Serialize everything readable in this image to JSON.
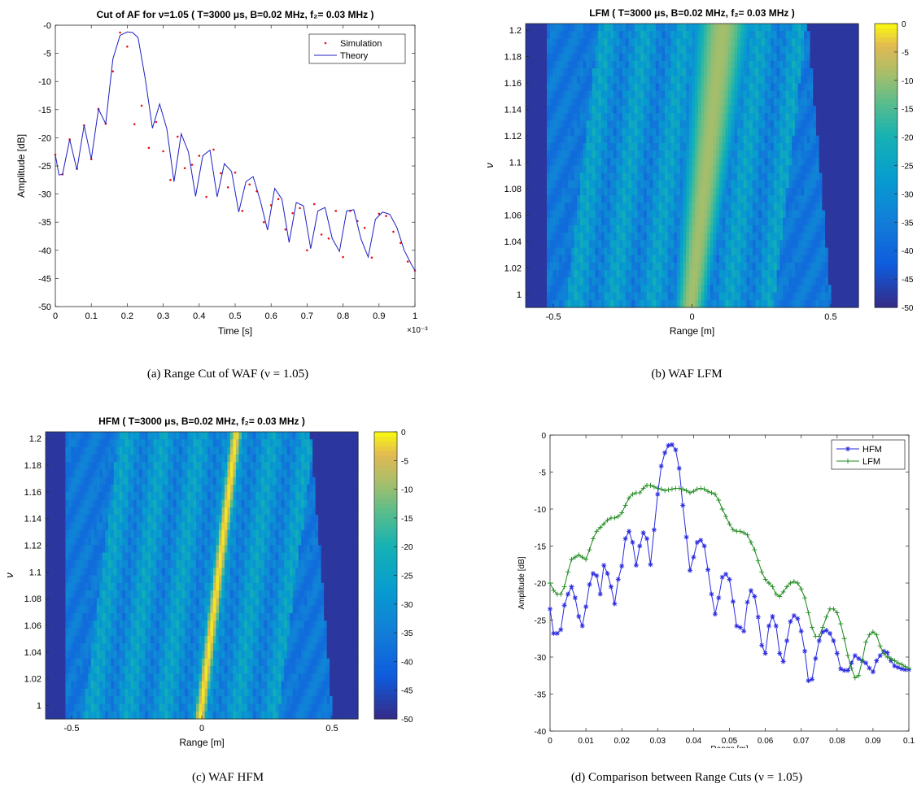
{
  "captions": {
    "a": "(a) Range Cut of WAF (ν = 1.05)",
    "b": "(b) WAF LFM",
    "c": "(c) WAF HFM",
    "d": "(d) Comparison between Range Cuts (ν = 1.05)"
  },
  "chart_data": [
    {
      "id": "a",
      "type": "line",
      "title": "Cut of AF for ν=1.05 ( T=3000 μs, B=0.02 MHz, f₂= 0.03 MHz )",
      "xlabel": "Time [s]",
      "ylabel": "Amplitude [dB]",
      "x_multiplier": "×10⁻³",
      "xlim": [
        0,
        1
      ],
      "ylim": [
        -50,
        0
      ],
      "xticks": [
        "0",
        "0.1",
        "0.2",
        "0.3",
        "0.4",
        "0.5",
        "0.6",
        "0.7",
        "0.8",
        "0.9",
        "1"
      ],
      "yticks": [
        "-0",
        "-5",
        "-10",
        "-15",
        "-20",
        "-25",
        "-30",
        "-35",
        "-40",
        "-45",
        "-50"
      ],
      "grid": false,
      "legend": "top-right",
      "series": [
        {
          "name": "Simulation",
          "style": "dots",
          "color": "#e8141c",
          "x": [
            0,
            0.02,
            0.04,
            0.06,
            0.08,
            0.1,
            0.12,
            0.14,
            0.16,
            0.18,
            0.2,
            0.22,
            0.24,
            0.26,
            0.28,
            0.3,
            0.32,
            0.34,
            0.36,
            0.38,
            0.4,
            0.42,
            0.44,
            0.46,
            0.48,
            0.5,
            0.52,
            0.54,
            0.56,
            0.58,
            0.6,
            0.62,
            0.64,
            0.66,
            0.68,
            0.7,
            0.72,
            0.74,
            0.76,
            0.78,
            0.8,
            0.82,
            0.84,
            0.86,
            0.88,
            0.9,
            0.92,
            0.94,
            0.96,
            0.98,
            1.0
          ],
          "y": [
            -23,
            -26.5,
            -20.3,
            -25.5,
            -17.8,
            -23.8,
            -14.9,
            -17.5,
            -8.2,
            -1.3,
            -3.8,
            -17.6,
            -14.3,
            -21.8,
            -17.2,
            -22.4,
            -27.5,
            -19.8,
            -25.4,
            -24.8,
            -23.2,
            -30.5,
            -22.1,
            -26.3,
            -28.8,
            -26.2,
            -33.0,
            -28.3,
            -29.5,
            -35.0,
            -32.0,
            -30.9,
            -36.3,
            -33.4,
            -32.5,
            -40.0,
            -31.8,
            -37.2,
            -37.9,
            -33.0,
            -41.2,
            -33.0,
            -34.8,
            -36.0,
            -41.3,
            -33.5,
            -33.9,
            -36.7,
            -38.7,
            -42.0,
            -43.6
          ]
        },
        {
          "name": "Theory",
          "style": "line",
          "color": "#1f1fc4",
          "x": [
            0,
            0.01,
            0.02,
            0.04,
            0.06,
            0.08,
            0.1,
            0.12,
            0.14,
            0.16,
            0.18,
            0.2,
            0.215,
            0.23,
            0.25,
            0.27,
            0.29,
            0.31,
            0.33,
            0.35,
            0.37,
            0.39,
            0.41,
            0.43,
            0.45,
            0.47,
            0.49,
            0.51,
            0.53,
            0.55,
            0.57,
            0.59,
            0.61,
            0.63,
            0.65,
            0.67,
            0.69,
            0.71,
            0.73,
            0.75,
            0.77,
            0.79,
            0.81,
            0.83,
            0.85,
            0.87,
            0.89,
            0.91,
            0.93,
            0.95,
            0.97,
            0.99,
            1.0
          ],
          "y": [
            -23,
            -26.6,
            -26.5,
            -20.3,
            -25.7,
            -17.8,
            -23.8,
            -14.9,
            -17.5,
            -6,
            -1.8,
            -1.2,
            -1.3,
            -2.2,
            -9.5,
            -18.3,
            -14.0,
            -18.4,
            -27.8,
            -19.3,
            -22.5,
            -30.4,
            -23.2,
            -22.2,
            -30.5,
            -24.6,
            -26.0,
            -33.2,
            -27.8,
            -26.9,
            -31.2,
            -36.4,
            -29.0,
            -30.9,
            -38.6,
            -31.5,
            -32.1,
            -39.7,
            -33.0,
            -32.4,
            -37.9,
            -40.2,
            -33.0,
            -32.8,
            -38.0,
            -41.2,
            -34.5,
            -33.2,
            -33.6,
            -36.0,
            -40.0,
            -42.5,
            -43.6
          ]
        }
      ]
    },
    {
      "id": "b",
      "type": "heatmap",
      "title": "LFM ( T=3000 μs, B=0.02 MHz, f₂= 0.03 MHz )",
      "xlabel": "Range [m]",
      "ylabel": "ν",
      "xlim": [
        -0.6,
        0.6
      ],
      "ylim": [
        0.99,
        1.205
      ],
      "xticks": [
        "-0.5",
        "0",
        "0.5"
      ],
      "yticks": [
        "1",
        "1.02",
        "1.04",
        "1.06",
        "1.08",
        "1.1",
        "1.12",
        "1.14",
        "1.16",
        "1.18",
        "1.2"
      ],
      "colorbar": {
        "ticks": [
          "0",
          "-5",
          "-10",
          "-15",
          "-20",
          "-25",
          "-30",
          "-35",
          "-40",
          "-45",
          "-50"
        ],
        "range": [
          -50,
          0
        ]
      },
      "ridge": {
        "start": [
          0,
          1.0
        ],
        "end": [
          0.11,
          1.2
        ],
        "peak_db": -9,
        "edge_db": -5
      },
      "bands": {
        "start": [
          -0.52,
          0.5
        ],
        "end": [
          -0.58,
          0.42
        ]
      }
    },
    {
      "id": "c",
      "type": "heatmap",
      "title": "HFM ( T=3000 μs, B=0.02 MHz, f₂= 0.03 MHz )",
      "xlabel": "Range [m]",
      "ylabel": "ν",
      "xlim": [
        -0.6,
        0.6
      ],
      "ylim": [
        0.99,
        1.205
      ],
      "xticks": [
        "-0.5",
        "0",
        "0.5"
      ],
      "yticks": [
        "1",
        "1.02",
        "1.04",
        "1.06",
        "1.08",
        "1.1",
        "1.12",
        "1.14",
        "1.16",
        "1.18",
        "1.2"
      ],
      "colorbar": {
        "ticks": [
          "0",
          "-5",
          "-10",
          "-15",
          "-20",
          "-25",
          "-30",
          "-35",
          "-40",
          "-45",
          "-50"
        ],
        "range": [
          -50,
          0
        ]
      },
      "ridge": {
        "start": [
          0,
          1.0
        ],
        "end": [
          0.13,
          1.2
        ],
        "peak_db": -1,
        "edge_db": -3
      },
      "bands": {
        "start": [
          -0.52,
          0.5
        ],
        "end": [
          -0.58,
          0.42
        ]
      }
    },
    {
      "id": "d",
      "type": "line",
      "title": "",
      "xlabel": "Range [m]",
      "ylabel": "Amplitude [dB]",
      "xlim": [
        0,
        0.1
      ],
      "ylim": [
        -40,
        0
      ],
      "xticks": [
        "0",
        "0.01",
        "0.02",
        "0.03",
        "0.04",
        "0.05",
        "0.06",
        "0.07",
        "0.08",
        "0.09",
        "0.1"
      ],
      "yticks": [
        "0",
        "-5",
        "-10",
        "-15",
        "-20",
        "-25",
        "-30",
        "-35",
        "-40"
      ],
      "grid": false,
      "legend": "top-right",
      "series": [
        {
          "name": "HFM",
          "marker": "*",
          "color": "#2a2ae0",
          "x": [
            0,
            0.001,
            0.002,
            0.003,
            0.004,
            0.005,
            0.006,
            0.007,
            0.008,
            0.009,
            0.01,
            0.011,
            0.012,
            0.013,
            0.014,
            0.015,
            0.016,
            0.017,
            0.018,
            0.019,
            0.02,
            0.021,
            0.022,
            0.023,
            0.024,
            0.025,
            0.026,
            0.027,
            0.028,
            0.029,
            0.03,
            0.031,
            0.032,
            0.033,
            0.034,
            0.035,
            0.036,
            0.037,
            0.038,
            0.039,
            0.04,
            0.041,
            0.042,
            0.043,
            0.044,
            0.045,
            0.046,
            0.047,
            0.048,
            0.049,
            0.05,
            0.051,
            0.052,
            0.053,
            0.054,
            0.055,
            0.056,
            0.057,
            0.058,
            0.059,
            0.06,
            0.061,
            0.062,
            0.063,
            0.064,
            0.065,
            0.066,
            0.067,
            0.068,
            0.069,
            0.07,
            0.071,
            0.072,
            0.073,
            0.074,
            0.075,
            0.076,
            0.077,
            0.078,
            0.079,
            0.08,
            0.081,
            0.082,
            0.083,
            0.084,
            0.085,
            0.086,
            0.087,
            0.088,
            0.089,
            0.09,
            0.091,
            0.092,
            0.093,
            0.094,
            0.095,
            0.096,
            0.097,
            0.098,
            0.099,
            0.1
          ],
          "y": [
            -23.5,
            -26.8,
            -26.8,
            -26.3,
            -23,
            -21.5,
            -20.5,
            -22,
            -24.5,
            -25.8,
            -23.2,
            -20.2,
            -18.7,
            -19,
            -21.5,
            -17.6,
            -18.7,
            -20.5,
            -22.8,
            -19.5,
            -17.7,
            -14,
            -13,
            -14.5,
            -17.6,
            -15,
            -13.2,
            -14,
            -17.5,
            -12.8,
            -8,
            -4.2,
            -2.4,
            -1.4,
            -1.3,
            -2,
            -4.5,
            -9.5,
            -13.8,
            -18.3,
            -16.5,
            -14.5,
            -14.2,
            -15,
            -18.2,
            -21.5,
            -24.2,
            -22,
            -19.2,
            -18.8,
            -19.5,
            -22.5,
            -25.8,
            -26,
            -26.5,
            -22.6,
            -21,
            -21.8,
            -24.6,
            -28.4,
            -29.5,
            -25.8,
            -24.5,
            -25.8,
            -29.5,
            -30.6,
            -27.8,
            -25.2,
            -24.4,
            -24.8,
            -26.5,
            -29.2,
            -33.2,
            -33,
            -30.2,
            -27.8,
            -26.6,
            -26.4,
            -26.8,
            -27.8,
            -29.5,
            -31.6,
            -31.8,
            -31.8,
            -30.8,
            -29.8,
            -30.2,
            -30.5,
            -30.8,
            -31.5,
            -32,
            -30.5,
            -29.8,
            -29.2,
            -29.4,
            -30.5,
            -31.2,
            -31.4,
            -31.6,
            -31.7,
            -31.7
          ]
        },
        {
          "name": "LFM",
          "marker": "+",
          "color": "#1e8a1e",
          "x": [
            0,
            0.001,
            0.002,
            0.003,
            0.004,
            0.005,
            0.006,
            0.007,
            0.008,
            0.009,
            0.01,
            0.011,
            0.012,
            0.013,
            0.014,
            0.015,
            0.016,
            0.017,
            0.018,
            0.019,
            0.02,
            0.021,
            0.022,
            0.023,
            0.024,
            0.025,
            0.026,
            0.027,
            0.028,
            0.029,
            0.03,
            0.031,
            0.032,
            0.033,
            0.034,
            0.035,
            0.036,
            0.037,
            0.038,
            0.039,
            0.04,
            0.041,
            0.042,
            0.043,
            0.044,
            0.045,
            0.046,
            0.047,
            0.048,
            0.049,
            0.05,
            0.051,
            0.052,
            0.053,
            0.054,
            0.055,
            0.056,
            0.057,
            0.058,
            0.059,
            0.06,
            0.061,
            0.062,
            0.063,
            0.064,
            0.065,
            0.066,
            0.067,
            0.068,
            0.069,
            0.07,
            0.071,
            0.072,
            0.073,
            0.074,
            0.075,
            0.076,
            0.077,
            0.078,
            0.079,
            0.08,
            0.081,
            0.082,
            0.083,
            0.084,
            0.085,
            0.086,
            0.087,
            0.088,
            0.089,
            0.09,
            0.091,
            0.092,
            0.093,
            0.094,
            0.095,
            0.096,
            0.097,
            0.098,
            0.099,
            0.1
          ],
          "y": [
            -20,
            -21,
            -21.5,
            -21.5,
            -20.5,
            -18.5,
            -16.8,
            -16.5,
            -16.2,
            -16.5,
            -16.8,
            -15.5,
            -14,
            -13,
            -12.5,
            -12,
            -11.5,
            -11.2,
            -11.2,
            -11,
            -10.5,
            -9.5,
            -8.5,
            -8,
            -7.8,
            -7.8,
            -7.2,
            -6.8,
            -6.8,
            -7,
            -7.2,
            -7.3,
            -7.5,
            -7.4,
            -7.3,
            -7.2,
            -7.2,
            -7.3,
            -7.5,
            -7.8,
            -7.6,
            -7.3,
            -7.2,
            -7.3,
            -7.6,
            -7.8,
            -8,
            -8.8,
            -10,
            -11,
            -12,
            -12.8,
            -13,
            -13,
            -13.2,
            -13.5,
            -14.5,
            -15.5,
            -17,
            -18.5,
            -19.5,
            -20,
            -20.5,
            -21.5,
            -21.8,
            -21.2,
            -20.5,
            -20,
            -19.8,
            -20,
            -20.8,
            -22,
            -24,
            -26,
            -27.2,
            -27.2,
            -26,
            -24.6,
            -23.5,
            -23.5,
            -24,
            -25.5,
            -27.5,
            -29.8,
            -31.5,
            -32.8,
            -32.5,
            -30.5,
            -28,
            -27,
            -26.6,
            -27,
            -28.5,
            -29.5,
            -30,
            -30.2,
            -30.5,
            -30.8,
            -31,
            -31.3,
            -31.5
          ]
        }
      ]
    }
  ]
}
